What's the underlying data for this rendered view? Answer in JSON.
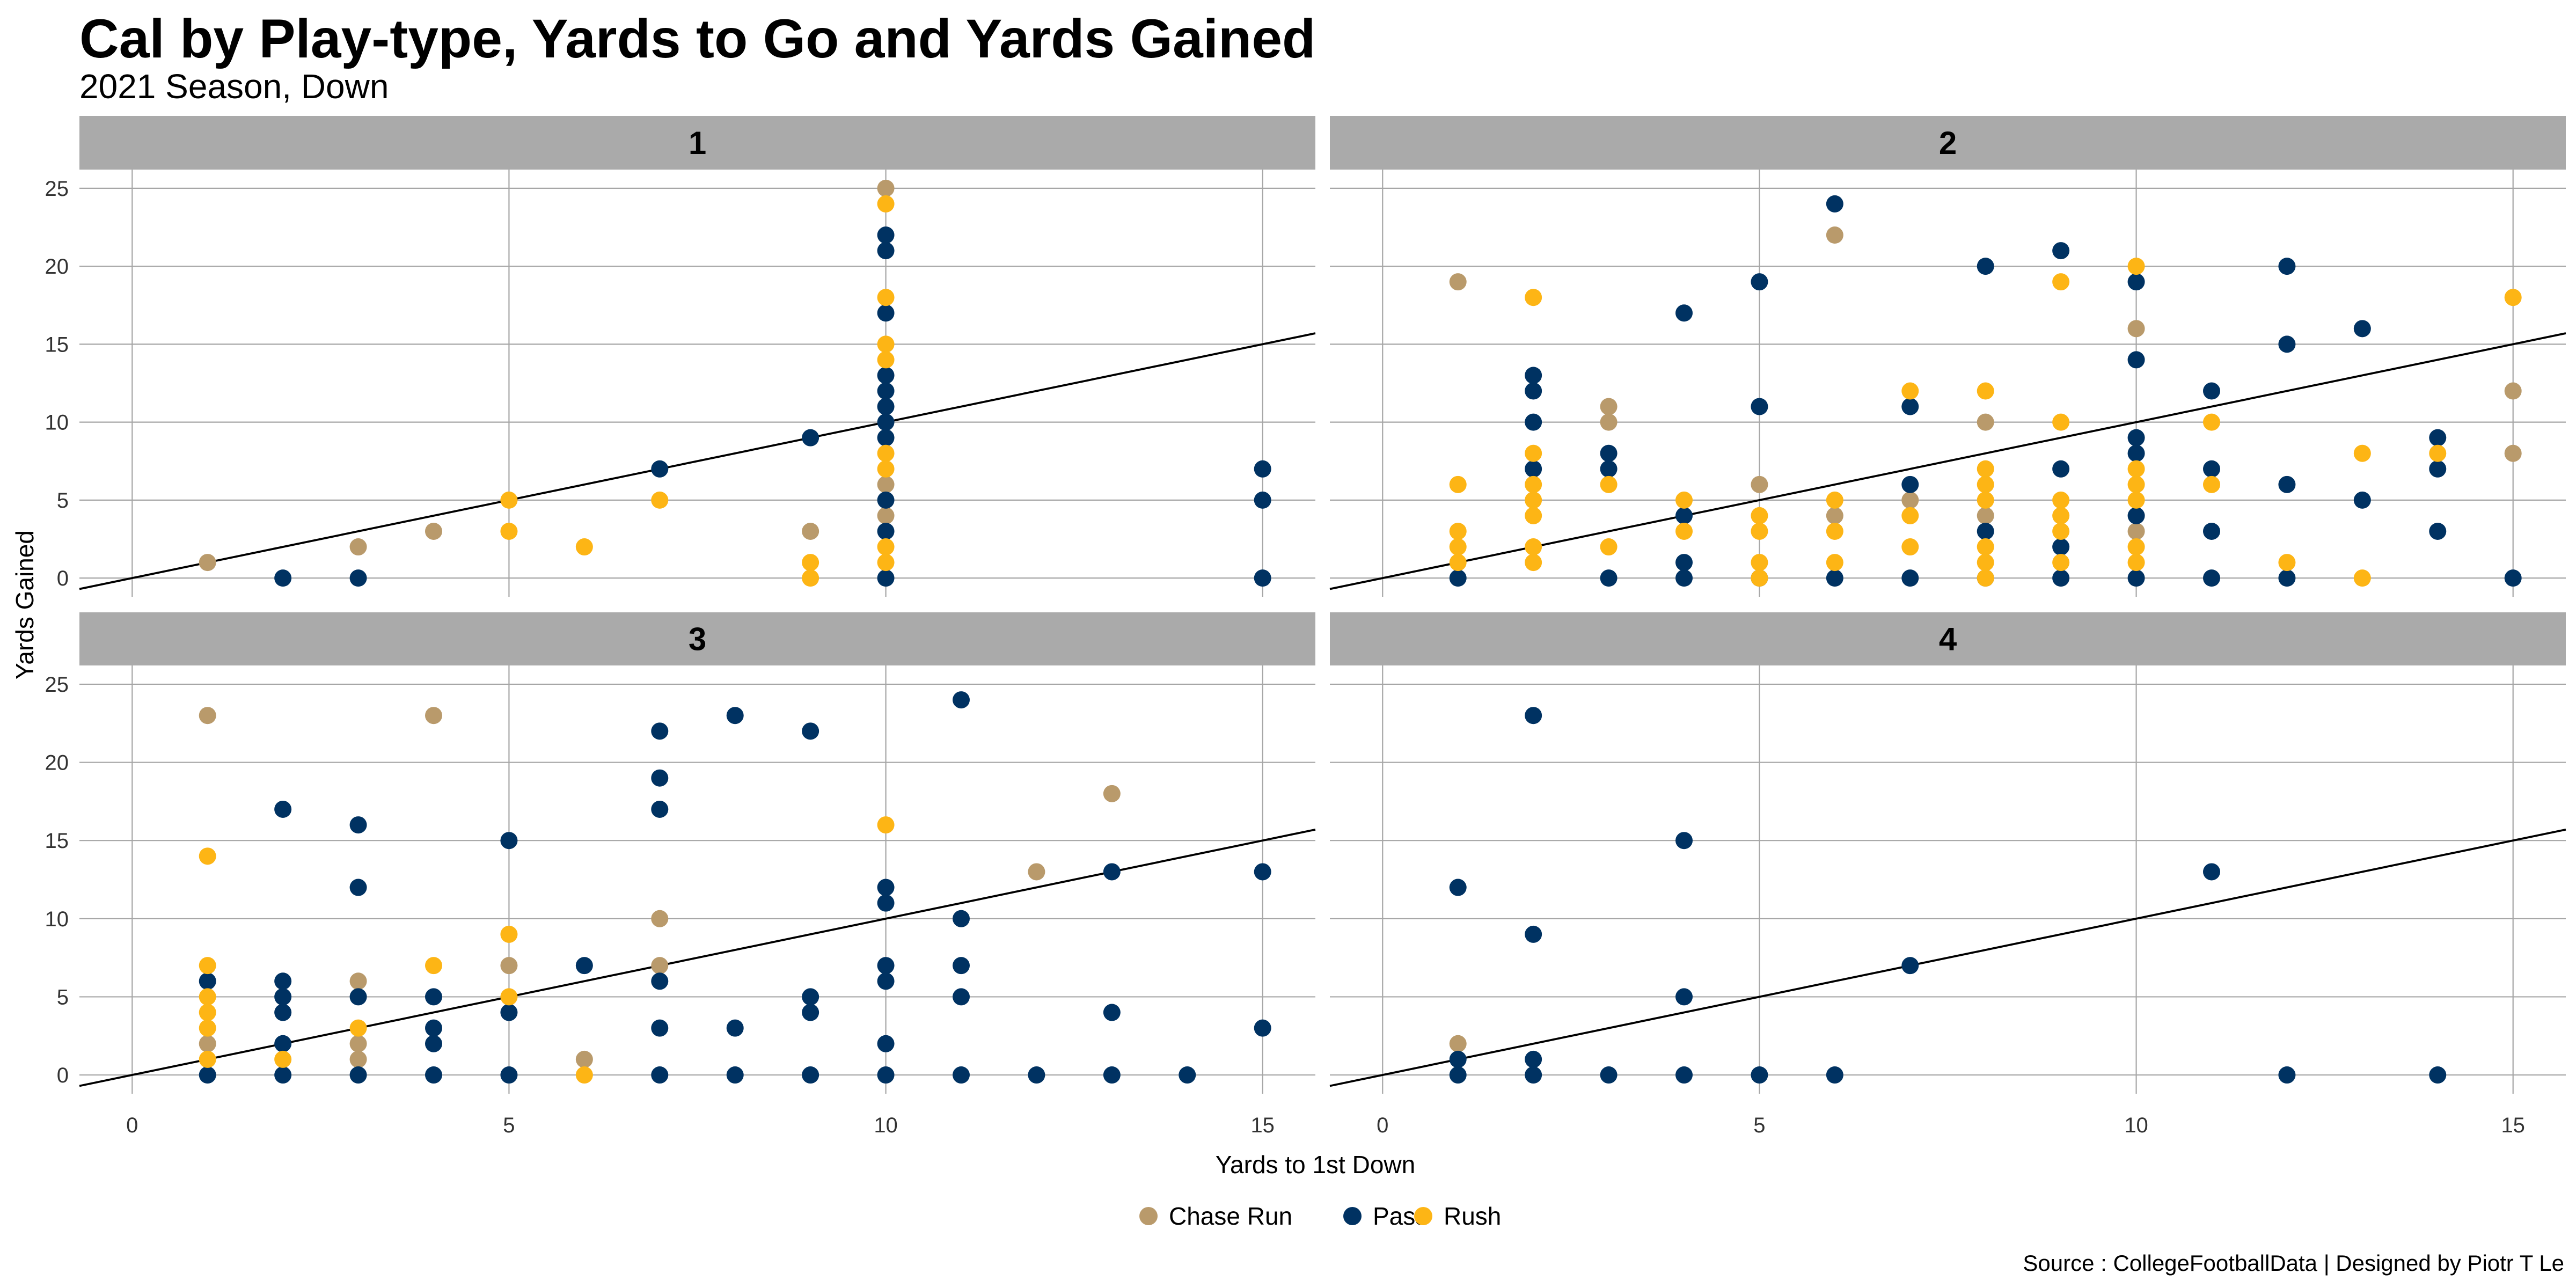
{
  "chart_data": {
    "type": "scatter",
    "title": "Cal by Play-type, Yards to Go and Yards Gained",
    "subtitle": "2021 Season, Down",
    "xlabel": "Yards to 1st Down",
    "ylabel": "Yards Gained",
    "source": "Source : CollegeFootballData | Designed by Piotr T Le",
    "xlim": [
      -0.7,
      15.7
    ],
    "ylim": [
      -1.2,
      26.2
    ],
    "x_ticks": [
      "0",
      "5",
      "10",
      "15"
    ],
    "y_ticks": [
      "0",
      "5",
      "10",
      "15",
      "20",
      "25"
    ],
    "reference_line": "y = x",
    "legend": [
      {
        "name": "Chase Run",
        "color": "#b99a6b"
      },
      {
        "name": "Pass",
        "color": "#003262"
      },
      {
        "name": "Rush",
        "color": "#fdb515"
      }
    ],
    "panels": [
      {
        "label": "1",
        "series": [
          {
            "name": "Chase Run",
            "points": [
              [
                1,
                1
              ],
              [
                3,
                2
              ],
              [
                4,
                3
              ],
              [
                9,
                3
              ],
              [
                10,
                25
              ],
              [
                10,
                6
              ],
              [
                10,
                4
              ]
            ]
          },
          {
            "name": "Pass",
            "points": [
              [
                2,
                0
              ],
              [
                3,
                0
              ],
              [
                7,
                7
              ],
              [
                9,
                9
              ],
              [
                10,
                22
              ],
              [
                10,
                21
              ],
              [
                10,
                17
              ],
              [
                10,
                13
              ],
              [
                10,
                12
              ],
              [
                10,
                11
              ],
              [
                10,
                10
              ],
              [
                10,
                9
              ],
              [
                10,
                5
              ],
              [
                10,
                3
              ],
              [
                10,
                0
              ],
              [
                15,
                7
              ],
              [
                15,
                5
              ],
              [
                15,
                0
              ]
            ]
          },
          {
            "name": "Rush",
            "points": [
              [
                5,
                5
              ],
              [
                5,
                3
              ],
              [
                6,
                2
              ],
              [
                7,
                5
              ],
              [
                9,
                1
              ],
              [
                9,
                0
              ],
              [
                10,
                24
              ],
              [
                10,
                18
              ],
              [
                10,
                15
              ],
              [
                10,
                14
              ],
              [
                10,
                8
              ],
              [
                10,
                7
              ],
              [
                10,
                2
              ],
              [
                10,
                1
              ]
            ]
          }
        ]
      },
      {
        "label": "2",
        "series": [
          {
            "name": "Chase Run",
            "points": [
              [
                1,
                19
              ],
              [
                3,
                11
              ],
              [
                3,
                10
              ],
              [
                5,
                6
              ],
              [
                6,
                22
              ],
              [
                6,
                4
              ],
              [
                7,
                5
              ],
              [
                8,
                10
              ],
              [
                8,
                4
              ],
              [
                10,
                16
              ],
              [
                10,
                3
              ],
              [
                15,
                12
              ],
              [
                15,
                8
              ]
            ]
          },
          {
            "name": "Pass",
            "points": [
              [
                1,
                0
              ],
              [
                2,
                13
              ],
              [
                2,
                12
              ],
              [
                2,
                10
              ],
              [
                2,
                7
              ],
              [
                3,
                8
              ],
              [
                3,
                7
              ],
              [
                3,
                0
              ],
              [
                4,
                17
              ],
              [
                4,
                4
              ],
              [
                4,
                1
              ],
              [
                4,
                0
              ],
              [
                5,
                19
              ],
              [
                5,
                11
              ],
              [
                5,
                0
              ],
              [
                6,
                24
              ],
              [
                6,
                0
              ],
              [
                7,
                11
              ],
              [
                7,
                6
              ],
              [
                7,
                0
              ],
              [
                8,
                20
              ],
              [
                8,
                3
              ],
              [
                8,
                0
              ],
              [
                9,
                21
              ],
              [
                9,
                7
              ],
              [
                9,
                2
              ],
              [
                9,
                0
              ],
              [
                10,
                19
              ],
              [
                10,
                14
              ],
              [
                10,
                9
              ],
              [
                10,
                8
              ],
              [
                10,
                4
              ],
              [
                10,
                0
              ],
              [
                11,
                12
              ],
              [
                11,
                7
              ],
              [
                11,
                3
              ],
              [
                11,
                0
              ],
              [
                12,
                20
              ],
              [
                12,
                15
              ],
              [
                12,
                6
              ],
              [
                12,
                0
              ],
              [
                13,
                16
              ],
              [
                13,
                5
              ],
              [
                14,
                9
              ],
              [
                14,
                7
              ],
              [
                14,
                3
              ],
              [
                15,
                0
              ]
            ]
          },
          {
            "name": "Rush",
            "points": [
              [
                1,
                6
              ],
              [
                1,
                3
              ],
              [
                1,
                2
              ],
              [
                1,
                1
              ],
              [
                2,
                18
              ],
              [
                2,
                8
              ],
              [
                2,
                6
              ],
              [
                2,
                5
              ],
              [
                2,
                4
              ],
              [
                2,
                2
              ],
              [
                2,
                1
              ],
              [
                3,
                6
              ],
              [
                3,
                2
              ],
              [
                4,
                5
              ],
              [
                4,
                3
              ],
              [
                5,
                4
              ],
              [
                5,
                3
              ],
              [
                5,
                1
              ],
              [
                5,
                0
              ],
              [
                6,
                5
              ],
              [
                6,
                3
              ],
              [
                6,
                1
              ],
              [
                7,
                12
              ],
              [
                7,
                4
              ],
              [
                7,
                2
              ],
              [
                8,
                12
              ],
              [
                8,
                7
              ],
              [
                8,
                6
              ],
              [
                8,
                5
              ],
              [
                8,
                2
              ],
              [
                8,
                1
              ],
              [
                8,
                0
              ],
              [
                9,
                19
              ],
              [
                9,
                10
              ],
              [
                9,
                5
              ],
              [
                9,
                4
              ],
              [
                9,
                3
              ],
              [
                9,
                1
              ],
              [
                10,
                20
              ],
              [
                10,
                7
              ],
              [
                10,
                6
              ],
              [
                10,
                5
              ],
              [
                10,
                2
              ],
              [
                10,
                1
              ],
              [
                11,
                10
              ],
              [
                11,
                6
              ],
              [
                12,
                1
              ],
              [
                13,
                8
              ],
              [
                13,
                0
              ],
              [
                14,
                8
              ],
              [
                15,
                18
              ]
            ]
          }
        ]
      },
      {
        "label": "3",
        "series": [
          {
            "name": "Chase Run",
            "points": [
              [
                1,
                23
              ],
              [
                1,
                2
              ],
              [
                3,
                6
              ],
              [
                3,
                2
              ],
              [
                3,
                1
              ],
              [
                4,
                23
              ],
              [
                5,
                7
              ],
              [
                6,
                1
              ],
              [
                7,
                10
              ],
              [
                7,
                7
              ],
              [
                12,
                13
              ],
              [
                13,
                18
              ]
            ]
          },
          {
            "name": "Pass",
            "points": [
              [
                1,
                6
              ],
              [
                1,
                0
              ],
              [
                2,
                17
              ],
              [
                2,
                6
              ],
              [
                2,
                5
              ],
              [
                2,
                4
              ],
              [
                2,
                2
              ],
              [
                2,
                0
              ],
              [
                3,
                16
              ],
              [
                3,
                12
              ],
              [
                3,
                5
              ],
              [
                3,
                0
              ],
              [
                4,
                5
              ],
              [
                4,
                3
              ],
              [
                4,
                2
              ],
              [
                4,
                0
              ],
              [
                5,
                15
              ],
              [
                5,
                4
              ],
              [
                5,
                0
              ],
              [
                6,
                7
              ],
              [
                7,
                22
              ],
              [
                7,
                19
              ],
              [
                7,
                17
              ],
              [
                7,
                6
              ],
              [
                7,
                3
              ],
              [
                7,
                0
              ],
              [
                8,
                23
              ],
              [
                8,
                3
              ],
              [
                8,
                0
              ],
              [
                9,
                22
              ],
              [
                9,
                5
              ],
              [
                9,
                4
              ],
              [
                9,
                0
              ],
              [
                10,
                12
              ],
              [
                10,
                11
              ],
              [
                10,
                7
              ],
              [
                10,
                6
              ],
              [
                10,
                2
              ],
              [
                10,
                0
              ],
              [
                11,
                24
              ],
              [
                11,
                10
              ],
              [
                11,
                7
              ],
              [
                11,
                5
              ],
              [
                11,
                0
              ],
              [
                12,
                0
              ],
              [
                13,
                13
              ],
              [
                13,
                4
              ],
              [
                13,
                0
              ],
              [
                14,
                0
              ],
              [
                15,
                13
              ],
              [
                15,
                3
              ]
            ]
          },
          {
            "name": "Rush",
            "points": [
              [
                1,
                14
              ],
              [
                1,
                7
              ],
              [
                1,
                5
              ],
              [
                1,
                4
              ],
              [
                1,
                3
              ],
              [
                1,
                1
              ],
              [
                2,
                1
              ],
              [
                3,
                3
              ],
              [
                4,
                7
              ],
              [
                5,
                9
              ],
              [
                5,
                5
              ],
              [
                6,
                0
              ],
              [
                10,
                16
              ]
            ]
          }
        ]
      },
      {
        "label": "4",
        "series": [
          {
            "name": "Chase Run",
            "points": [
              [
                1,
                2
              ]
            ]
          },
          {
            "name": "Pass",
            "points": [
              [
                1,
                12
              ],
              [
                1,
                1
              ],
              [
                1,
                0
              ],
              [
                2,
                23
              ],
              [
                2,
                9
              ],
              [
                2,
                1
              ],
              [
                2,
                0
              ],
              [
                3,
                0
              ],
              [
                4,
                15
              ],
              [
                4,
                5
              ],
              [
                4,
                0
              ],
              [
                5,
                0
              ],
              [
                6,
                0
              ],
              [
                7,
                7
              ],
              [
                11,
                13
              ],
              [
                12,
                0
              ],
              [
                14,
                0
              ]
            ]
          },
          {
            "name": "Rush",
            "points": []
          }
        ]
      }
    ]
  }
}
